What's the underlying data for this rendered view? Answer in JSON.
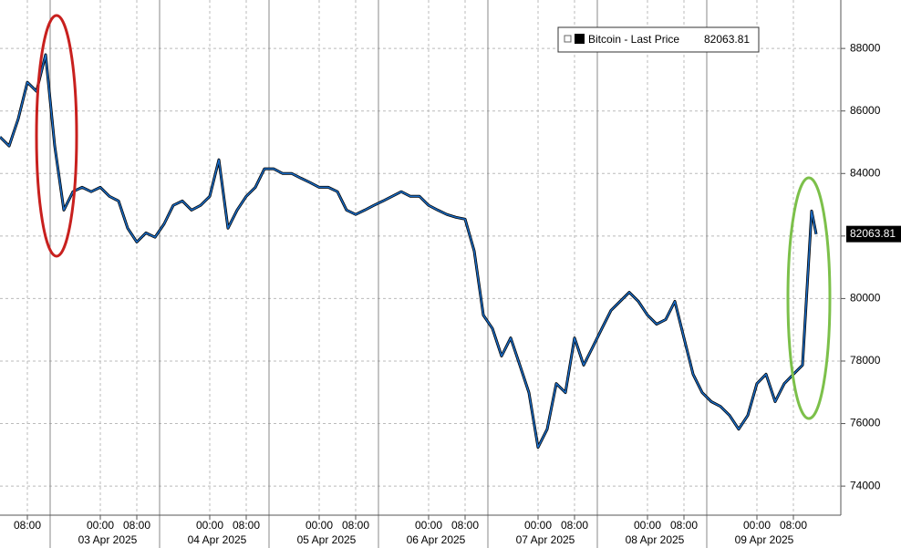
{
  "chart_data": {
    "type": "line",
    "series": [
      {
        "name": "Bitcoin - Last Price",
        "color": "#1a6bc4",
        "x": [
          2,
          4,
          6,
          8,
          10,
          12,
          14,
          16,
          18,
          20,
          22,
          24,
          26,
          28,
          30,
          32,
          34,
          36,
          38,
          40,
          42,
          44,
          46,
          48,
          50,
          52,
          54,
          56,
          58,
          60,
          62,
          64,
          66,
          68,
          70,
          72,
          74,
          76,
          78,
          80,
          82,
          84,
          86,
          88,
          90,
          92,
          94,
          96,
          98,
          100,
          102,
          104,
          106,
          108,
          110,
          112,
          114,
          116,
          118,
          120,
          122,
          124,
          126,
          128,
          130,
          132,
          134,
          136,
          138,
          140,
          142,
          144,
          146,
          148,
          150,
          152,
          154,
          156,
          158,
          160,
          162,
          164,
          166,
          168,
          170,
          172,
          174,
          176,
          178,
          180,
          181
        ],
        "values": [
          85170,
          84880,
          85750,
          86920,
          86630,
          87800,
          84880,
          82830,
          83420,
          83560,
          83420,
          83560,
          83270,
          83120,
          82250,
          81810,
          82100,
          81960,
          82390,
          82980,
          83120,
          82830,
          82980,
          83270,
          84440,
          82250,
          82830,
          83270,
          83560,
          84150,
          84150,
          84000,
          84000,
          83850,
          83710,
          83560,
          83560,
          83420,
          82830,
          82690,
          82830,
          82980,
          83120,
          83270,
          83420,
          83270,
          83270,
          82980,
          82830,
          82690,
          82600,
          82540,
          81520,
          79470,
          79040,
          78160,
          78740,
          77870,
          76990,
          75240,
          75820,
          77280,
          76990,
          78740,
          77870,
          78450,
          79040,
          79620,
          79910,
          80200,
          79910,
          79470,
          79180,
          79330,
          79910,
          78740,
          77580,
          76990,
          76700,
          76550,
          76260,
          75820,
          76260,
          77280,
          77580,
          76700,
          77280,
          77580,
          77870,
          82800,
          82060
        ]
      }
    ],
    "last_price": 82063.81,
    "xlim": [
      2,
      186.4
    ],
    "xticks": [
      {
        "value": 8,
        "label": "08:00"
      },
      {
        "value": 24,
        "label": "00:00"
      },
      {
        "value": 32,
        "label": "08:00"
      },
      {
        "value": 48,
        "label": "00:00"
      },
      {
        "value": 56,
        "label": "08:00"
      },
      {
        "value": 72,
        "label": "00:00"
      },
      {
        "value": 80,
        "label": "08:00"
      },
      {
        "value": 96,
        "label": "00:00"
      },
      {
        "value": 104,
        "label": "08:00"
      },
      {
        "value": 120,
        "label": "00:00"
      },
      {
        "value": 128,
        "label": "08:00"
      },
      {
        "value": 144,
        "label": "00:00"
      },
      {
        "value": 152,
        "label": "08:00"
      },
      {
        "value": 168,
        "label": "00:00"
      },
      {
        "value": 176,
        "label": "08:00"
      }
    ],
    "date_labels": [
      {
        "value": 24,
        "label": "03 Apr 2025"
      },
      {
        "value": 48,
        "label": "04 Apr 2025"
      },
      {
        "value": 72,
        "label": "05 Apr 2025"
      },
      {
        "value": 96,
        "label": "06 Apr 2025"
      },
      {
        "value": 120,
        "label": "07 Apr 2025"
      },
      {
        "value": 144,
        "label": "08 Apr 2025"
      },
      {
        "value": 168,
        "label": "09 Apr 2025"
      }
    ],
    "ylim": [
      73070,
      89550
    ],
    "yticks": [
      74000,
      76000,
      78000,
      80000,
      82000,
      84000,
      86000,
      88000
    ],
    "grid": true
  }
}
